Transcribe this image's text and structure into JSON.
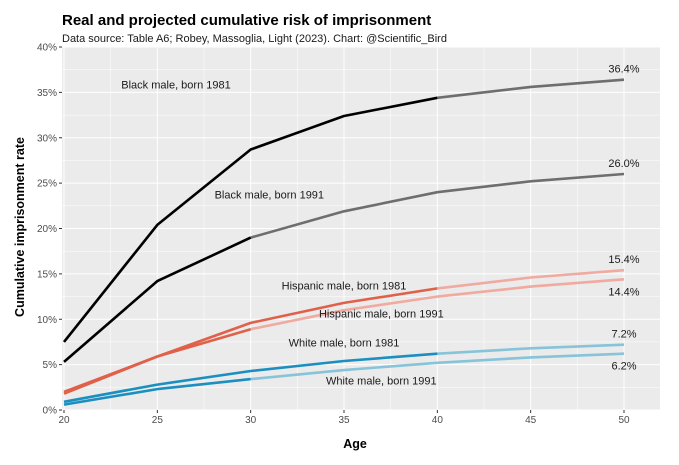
{
  "chart_data": {
    "type": "line",
    "title": "Real and projected cumulative risk of imprisonment",
    "subtitle": "Data source: Table A6; Robey, Massoglia, Light (2023). Chart: @Scientific_Bird",
    "xlabel": "Age",
    "ylabel": "Cumulative imprisonment rate",
    "x_ticks": [
      "20",
      "25",
      "30",
      "35",
      "40",
      "45",
      "50"
    ],
    "y_ticks": [
      "0%",
      "5%",
      "10%",
      "15%",
      "20%",
      "25%",
      "30%",
      "35%",
      "40%"
    ],
    "xlim": [
      20,
      50
    ],
    "ylim": [
      0,
      40
    ],
    "grid": true,
    "legend": "none",
    "x": [
      20,
      25,
      30,
      35,
      40,
      45,
      50
    ],
    "series": [
      {
        "name": "Black male, born 1981",
        "values": [
          7.5,
          20.4,
          28.7,
          32.4,
          34.4,
          35.6,
          36.4
        ],
        "real_until": 40,
        "color_real": "#000000",
        "color_projected": "#6e6e6e",
        "end_label": "36.4%"
      },
      {
        "name": "Black male, born 1991",
        "values": [
          5.3,
          14.2,
          19.0,
          21.9,
          24.0,
          25.2,
          26.0
        ],
        "real_until": 30,
        "color_real": "#000000",
        "color_projected": "#6e6e6e",
        "end_label": "26.0%"
      },
      {
        "name": "Hispanic male, born 1981",
        "values": [
          2.0,
          5.9,
          9.6,
          11.8,
          13.4,
          14.6,
          15.4
        ],
        "real_until": 40,
        "color_real": "#e0614a",
        "color_projected": "#f0aaa0",
        "end_label": "15.4%"
      },
      {
        "name": "Hispanic male, born 1991",
        "values": [
          1.8,
          5.9,
          8.9,
          11.0,
          12.5,
          13.6,
          14.4
        ],
        "real_until": 30,
        "color_real": "#e0614a",
        "color_projected": "#f0aaa0",
        "end_label": "14.4%"
      },
      {
        "name": "White male, born 1981",
        "values": [
          0.9,
          2.8,
          4.3,
          5.4,
          6.2,
          6.8,
          7.2
        ],
        "real_until": 40,
        "color_real": "#1a8fc0",
        "color_projected": "#87c3d9",
        "end_label": "7.2%"
      },
      {
        "name": "White male, born 1991",
        "values": [
          0.6,
          2.3,
          3.4,
          4.4,
          5.2,
          5.8,
          6.2
        ],
        "real_until": 30,
        "color_real": "#1a8fc0",
        "color_projected": "#87c3d9",
        "end_label": "6.2%"
      }
    ]
  }
}
